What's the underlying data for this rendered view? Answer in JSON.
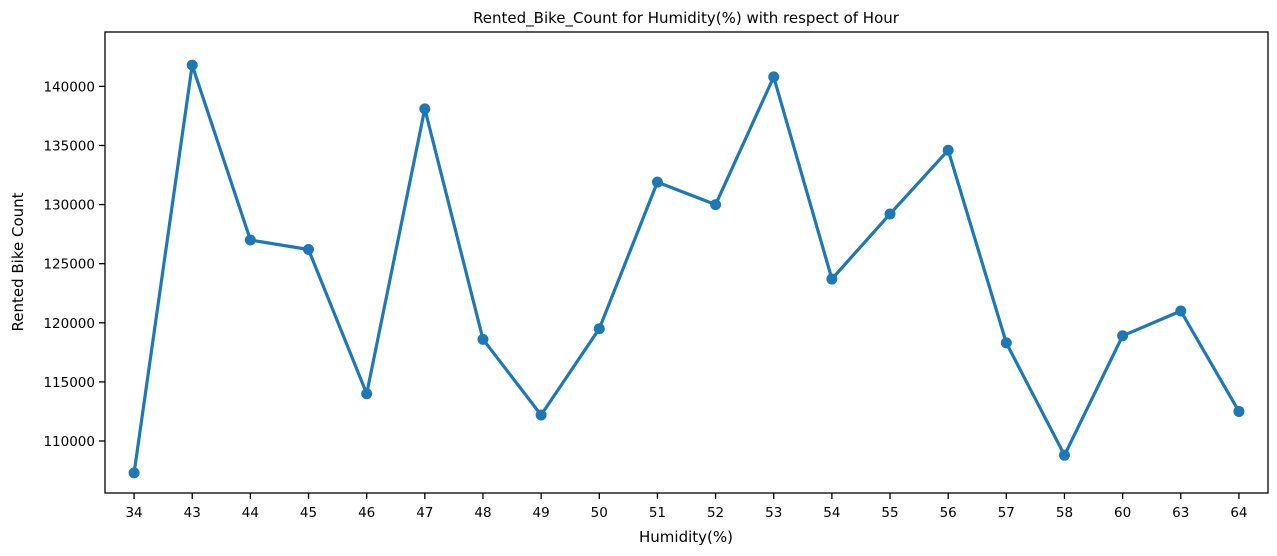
{
  "chart_data": {
    "type": "line",
    "title": "Rented_Bike_Count for Humidity(%) with respect of Hour",
    "xlabel": "Humidity(%)",
    "ylabel": "Rented Bike Count",
    "categories": [
      "34",
      "43",
      "44",
      "45",
      "46",
      "47",
      "48",
      "49",
      "50",
      "51",
      "52",
      "53",
      "54",
      "55",
      "56",
      "57",
      "58",
      "60",
      "63",
      "64"
    ],
    "series": [
      {
        "values": [
          107300,
          141800,
          127000,
          126200,
          114000,
          138100,
          118600,
          112200,
          119500,
          131900,
          130000,
          140800,
          123700,
          129200,
          134600,
          118300,
          108800,
          118900,
          121000,
          112500
        ]
      }
    ],
    "ylim": [
      105600,
      144600
    ],
    "yticks": [
      110000,
      115000,
      120000,
      125000,
      130000,
      135000,
      140000
    ],
    "grid": false,
    "legend": "none",
    "color": "#1f77b4"
  }
}
